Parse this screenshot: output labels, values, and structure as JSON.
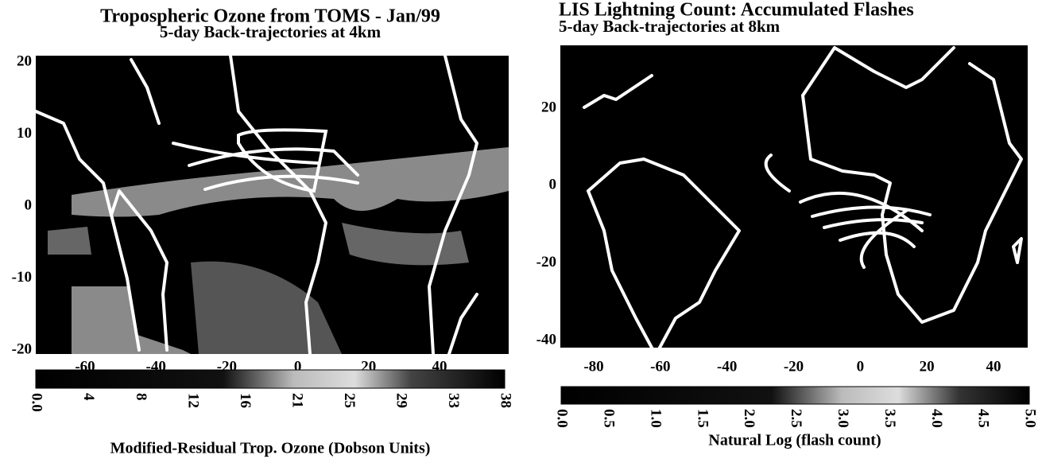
{
  "panels": [
    {
      "title": "Tropospheric Ozone from TOMS - Jan/99",
      "subtitle": "5-day Back-trajectories at 4km",
      "x_ticks": [
        "-60",
        "-40",
        "-20",
        "0",
        "20",
        "40"
      ],
      "y_ticks": [
        "20",
        "10",
        "0",
        "-10",
        "-20"
      ],
      "colorbar": {
        "ticks": [
          "0.0",
          "4",
          "8",
          "12",
          "16",
          "21",
          "25",
          "29",
          "33",
          "38"
        ],
        "label": "Modified-Residual Trop. Ozone (Dobson Units)"
      }
    },
    {
      "title": "LIS Lightning Count: Accumulated Flashes",
      "subtitle": "5-day Back-trajectories at 8km",
      "x_ticks": [
        "-80",
        "-60",
        "-40",
        "-20",
        "0",
        "20",
        "40"
      ],
      "y_ticks": [
        "20",
        "0",
        "-20",
        "-40"
      ],
      "colorbar": {
        "ticks": [
          "0.0",
          "0.5",
          "1.0",
          "1.5",
          "2.0",
          "2.5",
          "3.0",
          "3.5",
          "4.0",
          "4.5",
          "5.0"
        ],
        "label": "Natural Log (flash count)"
      }
    }
  ]
}
